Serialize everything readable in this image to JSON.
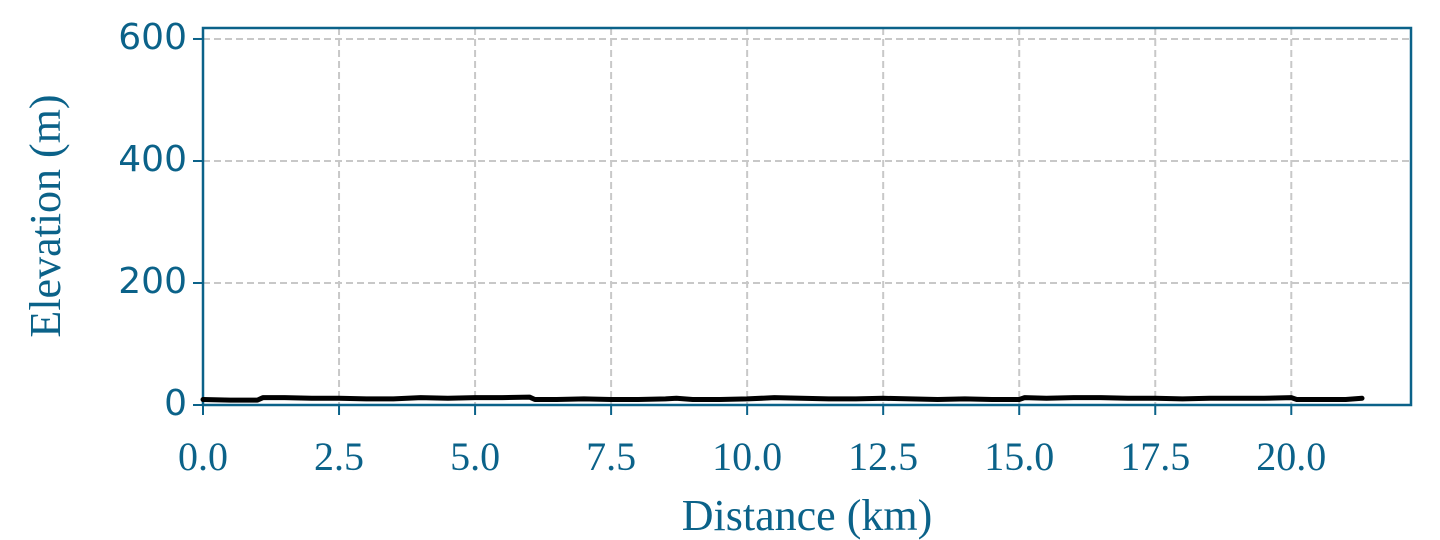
{
  "chart_data": {
    "type": "line",
    "x_label": "Distance (km)",
    "y_label": "Elevation (m)",
    "x": [
      0,
      0.5,
      1.0,
      1.1,
      1.5,
      2.0,
      2.5,
      3.0,
      3.5,
      4.0,
      4.5,
      5.0,
      5.5,
      6.0,
      6.1,
      6.5,
      7.0,
      7.5,
      8.0,
      8.5,
      8.7,
      9.0,
      9.5,
      10.0,
      10.5,
      11.0,
      11.5,
      12.0,
      12.5,
      13.0,
      13.5,
      14.0,
      14.5,
      15.0,
      15.1,
      15.5,
      16.0,
      16.5,
      17.0,
      17.5,
      18.0,
      18.5,
      19.0,
      19.5,
      20.0,
      20.1,
      20.5,
      21.0,
      21.3
    ],
    "series": [
      {
        "color": "#000000",
        "values": [
          9,
          8,
          8,
          12,
          12,
          11,
          11,
          10,
          10,
          12,
          11,
          12,
          12,
          13,
          9,
          9,
          10,
          9,
          9,
          10,
          11,
          9,
          9,
          10,
          12,
          11,
          10,
          10,
          11,
          10,
          9,
          10,
          9,
          9,
          12,
          11,
          12,
          12,
          11,
          11,
          10,
          11,
          11,
          11,
          12,
          9,
          9,
          9,
          11
        ]
      }
    ],
    "xlim": [
      0,
      22.2
    ],
    "ylim": [
      0,
      618
    ],
    "xticks": [
      {
        "value": 0,
        "label": "0.0"
      },
      2.5,
      {
        "value": 5,
        "label": "5.0"
      },
      7.5,
      {
        "value": 10,
        "label": "10.0"
      },
      12.5,
      {
        "value": 15,
        "label": "15.0"
      },
      17.5,
      {
        "value": 20,
        "label": "20.0"
      }
    ],
    "yticks": [
      0,
      200,
      400,
      600
    ],
    "grid": true,
    "axis_color": "#0b6289"
  }
}
